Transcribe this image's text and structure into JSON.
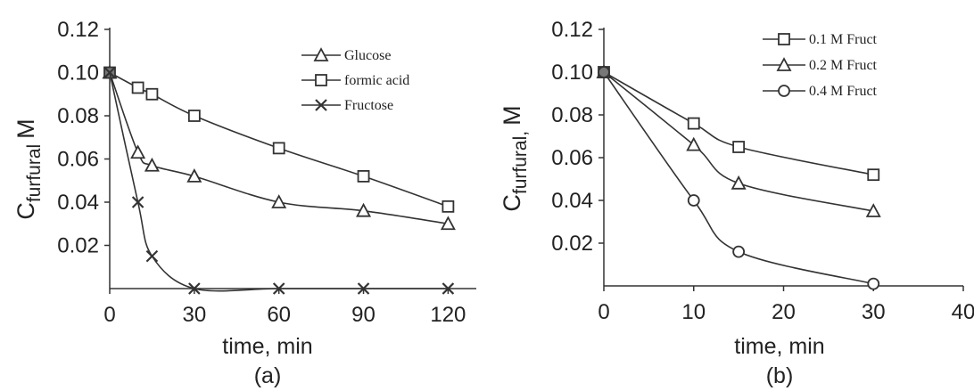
{
  "chart_data": [
    {
      "type": "line",
      "panel_label": "(a)",
      "xlabel": "time, min",
      "ylabel_main": "C",
      "ylabel_sub": "furfural",
      "ylabel_unit": "M",
      "xlim": [
        0,
        130
      ],
      "ylim": [
        0,
        0.12
      ],
      "x_ticks": [
        0,
        30,
        60,
        90,
        120
      ],
      "x_tick_labels": [
        "0",
        "30",
        "60",
        "90",
        "120"
      ],
      "y_ticks": [
        0.02,
        0.04,
        0.06,
        0.08,
        0.1,
        0.12
      ],
      "y_tick_labels": [
        "0.02",
        "0.04",
        "0.06",
        "0.08",
        "0.10",
        "0.12"
      ],
      "legend_position": "top-right",
      "series": [
        {
          "name": "Glucose",
          "marker": "triangle",
          "x": [
            0,
            10,
            15,
            30,
            60,
            90,
            120
          ],
          "y": [
            0.1,
            0.063,
            0.057,
            0.052,
            0.04,
            0.036,
            0.03
          ]
        },
        {
          "name": "formic acid",
          "marker": "square",
          "x": [
            0,
            10,
            15,
            30,
            60,
            90,
            120
          ],
          "y": [
            0.1,
            0.093,
            0.09,
            0.08,
            0.065,
            0.052,
            0.038
          ]
        },
        {
          "name": "Fructose",
          "marker": "x",
          "x": [
            0,
            10,
            15,
            30,
            60,
            90,
            120
          ],
          "y": [
            0.1,
            0.04,
            0.015,
            0.0,
            0.0,
            0.0,
            0.0
          ]
        }
      ]
    },
    {
      "type": "line",
      "panel_label": "(b)",
      "xlabel": "time, min",
      "ylabel_main": "C",
      "ylabel_sub": "furfural,",
      "ylabel_unit": "M",
      "xlim": [
        0,
        40
      ],
      "ylim": [
        0,
        0.12
      ],
      "x_ticks": [
        0,
        10,
        20,
        30,
        40
      ],
      "x_tick_labels": [
        "0",
        "10",
        "20",
        "30",
        "40"
      ],
      "y_ticks": [
        0.02,
        0.04,
        0.06,
        0.08,
        0.1,
        0.12
      ],
      "y_tick_labels": [
        "0.02",
        "0.04",
        "0.06",
        "0.08",
        "0.10",
        "0.12"
      ],
      "legend_position": "top-right",
      "series": [
        {
          "name": "0.1 M Fruct",
          "marker": "square",
          "x": [
            0,
            10,
            15,
            30
          ],
          "y": [
            0.1,
            0.076,
            0.065,
            0.052
          ]
        },
        {
          "name": "0.2 M Fruct",
          "marker": "triangle",
          "x": [
            0,
            10,
            15,
            30
          ],
          "y": [
            0.1,
            0.066,
            0.048,
            0.035
          ]
        },
        {
          "name": "0.4 M Fruct",
          "marker": "circle",
          "x": [
            0,
            10,
            15,
            30
          ],
          "y": [
            0.1,
            0.04,
            0.016,
            0.001
          ]
        }
      ]
    }
  ]
}
